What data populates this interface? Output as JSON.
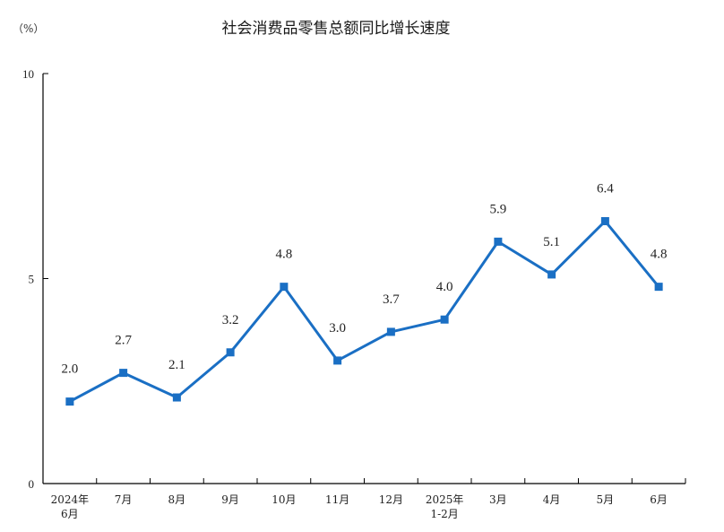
{
  "chart_data": {
    "type": "line",
    "title": "社会消费品零售总额同比增长速度",
    "unit_label": "（%）",
    "xlabel": "",
    "ylabel": "",
    "categories": [
      [
        "2024年",
        "6月"
      ],
      [
        "7月"
      ],
      [
        "8月"
      ],
      [
        "9月"
      ],
      [
        "10月"
      ],
      [
        "11月"
      ],
      [
        "12月"
      ],
      [
        "2025年",
        "1-2月"
      ],
      [
        "3月"
      ],
      [
        "4月"
      ],
      [
        "5月"
      ],
      [
        "6月"
      ]
    ],
    "values": [
      2.0,
      2.7,
      2.1,
      3.2,
      4.8,
      3.0,
      3.7,
      4.0,
      5.9,
      5.1,
      6.4,
      4.8
    ],
    "value_labels": [
      "2.0",
      "2.7",
      "2.1",
      "3.2",
      "4.8",
      "3.0",
      "3.7",
      "4.0",
      "5.9",
      "5.1",
      "6.4",
      "4.8"
    ],
    "ylim": [
      0,
      10
    ],
    "yticks": [
      "0",
      "5",
      "10"
    ],
    "grid": false,
    "line_color": "#1a6fc4",
    "axis_color": "#000000"
  }
}
